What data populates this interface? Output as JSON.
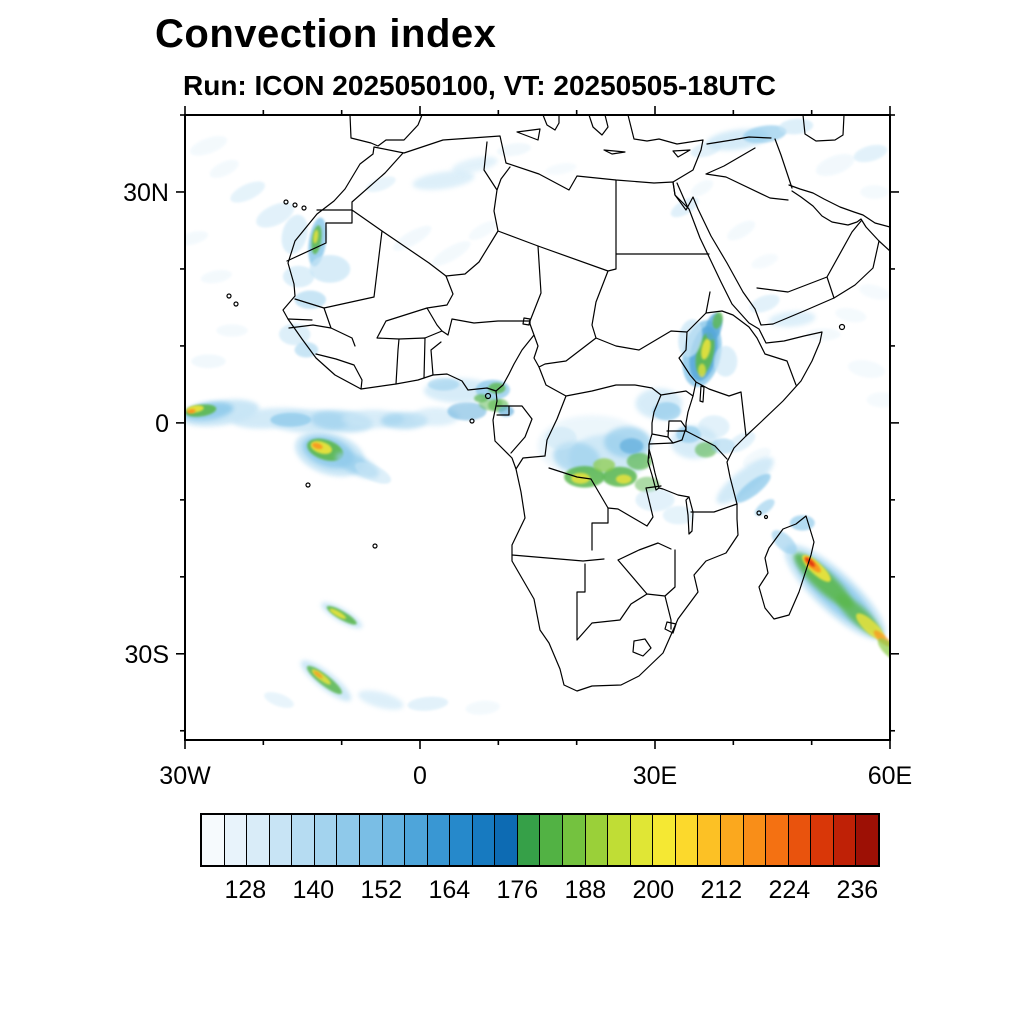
{
  "chart_data": {
    "type": "heatmap",
    "title": "Convection index",
    "subtitle": "Run: ICON 2025050100,  VT: 20250505-18UTC",
    "x_axis": {
      "range_lon": [
        -30,
        60
      ],
      "minor_tick_step_deg": 10,
      "label_ticks": [
        {
          "label": "30W",
          "lon": -30
        },
        {
          "label": "0",
          "lon": 0
        },
        {
          "label": "30E",
          "lon": 30
        },
        {
          "label": "60E",
          "lon": 60
        }
      ]
    },
    "y_axis": {
      "range_lat": [
        -41.2,
        40
      ],
      "minor_tick_step_deg": 10,
      "label_ticks": [
        {
          "label": "30N",
          "lat": 30
        },
        {
          "label": "0",
          "lat": 0
        },
        {
          "label": "30S",
          "lat": -30
        }
      ]
    },
    "colorbar": {
      "min": 120,
      "max": 240,
      "step": 4,
      "tick_labels": [
        "128",
        "140",
        "152",
        "164",
        "176",
        "188",
        "200",
        "212",
        "224",
        "236"
      ],
      "colors": [
        "#f6fafd",
        "#e8f3fb",
        "#d9ecf8",
        "#c8e4f5",
        "#b6dcf2",
        "#a3d3ee",
        "#8fc9ea",
        "#7abee5",
        "#64b2e0",
        "#4ea5da",
        "#3997d3",
        "#2689cb",
        "#177ac0",
        "#0d6bb3",
        "#36a048",
        "#52b244",
        "#74c23f",
        "#9ad039",
        "#c0dd35",
        "#e0e635",
        "#f5e833",
        "#fcd92c",
        "#fcc125",
        "#fba81e",
        "#f98e18",
        "#f47112",
        "#e9530d",
        "#d93708",
        "#bf2106",
        "#9d1005"
      ]
    },
    "palette": {
      "b0": "#e8f4fb",
      "b1": "#c7e5f6",
      "b2": "#93ccec",
      "b3": "#56a8da",
      "b4": "#2480bd",
      "g1": "#5cb84f",
      "g2": "#8ccc44",
      "y": "#f0e53a",
      "o": "#fb921e",
      "r": "#e03010",
      "dr": "#a31309"
    },
    "features_format": [
      "lon",
      "lat",
      "rx_deg",
      "ry_deg",
      "rotation_deg",
      "palette_key",
      "opacity"
    ],
    "features": [
      [
        -25.5,
        1.3,
        5,
        1.6,
        -8,
        "b1",
        0.95
      ],
      [
        -27,
        1.5,
        3.2,
        1.1,
        -8,
        "b2",
        0.95
      ],
      [
        -28,
        1.6,
        2,
        0.75,
        -8,
        "g1",
        0.9
      ],
      [
        -28.7,
        1.8,
        1.1,
        0.45,
        -8,
        "y",
        0.9
      ],
      [
        -29.2,
        1.5,
        0.55,
        0.28,
        -8,
        "o",
        0.9
      ],
      [
        -19,
        0.6,
        5,
        1.3,
        -4,
        "b1",
        0.8
      ],
      [
        -14,
        0.2,
        5,
        1.5,
        0,
        "b1",
        0.85
      ],
      [
        -16.5,
        0.4,
        2.6,
        0.9,
        0,
        "b2",
        0.8
      ],
      [
        -10,
        0.2,
        4,
        1.4,
        5,
        "b2",
        0.6
      ],
      [
        -6,
        0.5,
        4,
        1.2,
        0,
        "b1",
        0.7
      ],
      [
        -2,
        0.3,
        3,
        1.1,
        0,
        "b2",
        0.6
      ],
      [
        2,
        0.8,
        3,
        1.2,
        0,
        "b1",
        0.6
      ],
      [
        6,
        1.5,
        2.5,
        1.2,
        0,
        "b3",
        0.5
      ],
      [
        9,
        2.5,
        1.5,
        0.9,
        0,
        "g1",
        0.5
      ],
      [
        10,
        2.3,
        1.3,
        0.9,
        0,
        "g1",
        0.6
      ],
      [
        11,
        1.5,
        1,
        0.7,
        0,
        "b3",
        0.6
      ],
      [
        -11.5,
        -4,
        4.6,
        2.7,
        18,
        "b1",
        0.95
      ],
      [
        -11.7,
        -3.8,
        3.4,
        1.9,
        18,
        "b2",
        0.95
      ],
      [
        -12.1,
        -3.5,
        2.4,
        1.3,
        18,
        "g1",
        0.9
      ],
      [
        -12.6,
        -3.2,
        1.4,
        0.75,
        18,
        "y",
        0.9
      ],
      [
        -13.1,
        -3,
        0.7,
        0.38,
        18,
        "o",
        0.85
      ],
      [
        -8,
        -5.5,
        3,
        1.2,
        25,
        "b2",
        0.7
      ],
      [
        -6,
        -6.5,
        2.5,
        1,
        25,
        "b1",
        0.6
      ],
      [
        5,
        4.2,
        4.5,
        1.6,
        0,
        "b1",
        0.7
      ],
      [
        9.3,
        4.3,
        2.2,
        1.3,
        0,
        "b2",
        0.8
      ],
      [
        9.8,
        4.5,
        1.1,
        0.7,
        0,
        "g1",
        0.8
      ],
      [
        7.8,
        3.2,
        0.9,
        0.55,
        0,
        "g1",
        0.7
      ],
      [
        3,
        5,
        2,
        0.8,
        0,
        "b2",
        0.5
      ],
      [
        22,
        -3,
        7,
        4,
        0,
        "b0",
        0.8
      ],
      [
        24,
        -4.5,
        5,
        3,
        0,
        "b1",
        0.8
      ],
      [
        26.5,
        -2.5,
        3,
        2,
        0,
        "b2",
        0.7
      ],
      [
        20,
        -4.5,
        3,
        2,
        10,
        "b2",
        0.6
      ],
      [
        21,
        -7,
        2.6,
        1.4,
        0,
        "g1",
        0.85
      ],
      [
        20.5,
        -7.2,
        1.2,
        0.7,
        0,
        "y",
        0.8
      ],
      [
        25.5,
        -7,
        2.2,
        1.3,
        0,
        "g1",
        0.85
      ],
      [
        26,
        -7.3,
        1,
        0.6,
        0,
        "y",
        0.8
      ],
      [
        28,
        -5,
        1.6,
        1.1,
        0,
        "g1",
        0.7
      ],
      [
        23.5,
        -5.5,
        1.4,
        0.9,
        0,
        "g2",
        0.7
      ],
      [
        27,
        -3,
        1.5,
        1,
        0,
        "b3",
        0.6
      ],
      [
        18,
        -2,
        2,
        1.5,
        0,
        "b1",
        0.5
      ],
      [
        29,
        -8,
        1.6,
        1,
        0,
        "g1",
        0.5
      ],
      [
        30,
        -10,
        2.5,
        1.5,
        0,
        "b1",
        0.5
      ],
      [
        33,
        -12,
        2,
        1.2,
        0,
        "b1",
        0.45
      ],
      [
        30.5,
        2.5,
        3,
        2,
        0,
        "b1",
        0.7
      ],
      [
        31.5,
        1.5,
        1.8,
        1.2,
        0,
        "b2",
        0.7
      ],
      [
        36,
        9,
        2.4,
        4.4,
        12,
        "b2",
        0.9
      ],
      [
        36.2,
        9,
        1.7,
        3.6,
        12,
        "b3",
        0.85
      ],
      [
        36.4,
        9,
        1.1,
        2.8,
        12,
        "g1",
        0.9
      ],
      [
        36.5,
        9.6,
        0.55,
        1.4,
        12,
        "y",
        0.85
      ],
      [
        36,
        6.8,
        0.5,
        0.9,
        0,
        "y",
        0.7
      ],
      [
        37.5,
        12.5,
        1,
        1.8,
        15,
        "b3",
        0.8
      ],
      [
        38,
        13.3,
        0.6,
        1.1,
        15,
        "g1",
        0.8
      ],
      [
        34.5,
        11,
        1.5,
        2.5,
        10,
        "b1",
        0.7
      ],
      [
        39,
        8,
        1.5,
        2,
        0,
        "b1",
        0.6
      ],
      [
        35,
        -2.5,
        3,
        2.2,
        0,
        "b1",
        0.7
      ],
      [
        34.3,
        -1.5,
        1.6,
        1.1,
        0,
        "b2",
        0.7
      ],
      [
        36.5,
        -3.5,
        1.4,
        1,
        0,
        "g1",
        0.6
      ],
      [
        37.5,
        -0.5,
        2,
        1.5,
        0,
        "b1",
        0.5
      ],
      [
        38.7,
        -3,
        1.5,
        1,
        0,
        "b2",
        0.5
      ],
      [
        41,
        -2.5,
        2,
        1,
        -30,
        "b1",
        0.5
      ],
      [
        43,
        -4.5,
        2,
        0.9,
        -30,
        "b0",
        0.5
      ],
      [
        41.5,
        -7.5,
        4.5,
        1.4,
        -38,
        "b1",
        0.8
      ],
      [
        42.5,
        -8.5,
        2.8,
        0.9,
        -38,
        "b2",
        0.8
      ],
      [
        44,
        -11,
        1.5,
        0.7,
        -38,
        "b2",
        0.6
      ],
      [
        53,
        -22,
        8.5,
        2.6,
        43,
        "b1",
        0.95
      ],
      [
        53,
        -22,
        6.8,
        1.9,
        43,
        "b2",
        0.95
      ],
      [
        51.5,
        -20.5,
        5,
        1.3,
        43,
        "g1",
        0.9
      ],
      [
        56,
        -25,
        3.8,
        1.1,
        43,
        "g1",
        0.85
      ],
      [
        50.6,
        -18.9,
        2.4,
        0.75,
        43,
        "y",
        0.9
      ],
      [
        50.1,
        -18.4,
        1.4,
        0.5,
        43,
        "o",
        0.9
      ],
      [
        49.8,
        -18.1,
        0.8,
        0.3,
        43,
        "r",
        0.9
      ],
      [
        57.5,
        -26.5,
        2.4,
        0.8,
        43,
        "y",
        0.8
      ],
      [
        59,
        -28,
        1.4,
        0.5,
        43,
        "o",
        0.7
      ],
      [
        60,
        -29.5,
        2,
        0.8,
        43,
        "g2",
        0.7
      ],
      [
        48.8,
        -13,
        1.6,
        1,
        0,
        "b2",
        0.7
      ],
      [
        46.5,
        -15.5,
        2,
        1,
        43,
        "b2",
        0.6
      ],
      [
        -10,
        -25,
        3,
        0.85,
        30,
        "b1",
        0.9
      ],
      [
        -10,
        -25,
        2.2,
        0.55,
        30,
        "g1",
        0.9
      ],
      [
        -10.5,
        -24.8,
        1.2,
        0.32,
        30,
        "y",
        0.85
      ],
      [
        -12,
        -33.5,
        4,
        1.1,
        38,
        "b1",
        0.9
      ],
      [
        -12.2,
        -33.4,
        2.8,
        0.7,
        38,
        "g1",
        0.85
      ],
      [
        -12.6,
        -33,
        1.5,
        0.4,
        38,
        "y",
        0.8
      ],
      [
        -13,
        -32.7,
        0.7,
        0.25,
        38,
        "o",
        0.7
      ],
      [
        -5,
        -36,
        3,
        1,
        15,
        "b1",
        0.6
      ],
      [
        1,
        -36.5,
        2.6,
        0.9,
        -5,
        "b1",
        0.5
      ],
      [
        -18,
        -36,
        2,
        0.8,
        20,
        "b1",
        0.4
      ],
      [
        8,
        -37,
        2.2,
        0.9,
        -5,
        "b0",
        0.5
      ],
      [
        -13.1,
        23.5,
        1.1,
        3.2,
        8,
        "b2",
        0.9
      ],
      [
        -13.2,
        23.8,
        0.6,
        1.9,
        8,
        "g1",
        0.85
      ],
      [
        -13.3,
        24.2,
        0.3,
        0.9,
        8,
        "y",
        0.8
      ],
      [
        -11.5,
        20,
        2.6,
        1.8,
        0,
        "b1",
        0.7
      ],
      [
        -15.5,
        19,
        2,
        1.4,
        0,
        "b1",
        0.6
      ],
      [
        -16,
        24.5,
        1.6,
        2.6,
        15,
        "b1",
        0.6
      ],
      [
        -18.5,
        27,
        2.6,
        1.3,
        -25,
        "b1",
        0.5
      ],
      [
        -22,
        30,
        2.4,
        1,
        -25,
        "b1",
        0.45
      ],
      [
        -25,
        33,
        2,
        0.9,
        -25,
        "b0",
        0.5
      ],
      [
        -27,
        36,
        2.5,
        1,
        -20,
        "b0",
        0.5
      ],
      [
        -14,
        16,
        2,
        1.2,
        0,
        "b2",
        0.5
      ],
      [
        -16,
        11.5,
        2,
        1.4,
        0,
        "b1",
        0.6
      ],
      [
        -14.5,
        9.5,
        1.5,
        1,
        0,
        "b2",
        0.5
      ],
      [
        -27,
        8,
        2.2,
        0.9,
        0,
        "b0",
        0.6
      ],
      [
        -24,
        12,
        2,
        0.8,
        0,
        "b0",
        0.5
      ],
      [
        -26,
        19,
        2,
        0.8,
        -10,
        "b0",
        0.5
      ],
      [
        -29,
        24,
        2,
        0.8,
        -15,
        "b0",
        0.5
      ],
      [
        3,
        31.5,
        4,
        1.1,
        -8,
        "b1",
        0.6
      ],
      [
        7,
        33.5,
        3,
        0.9,
        -12,
        "b1",
        0.5
      ],
      [
        12,
        35.5,
        2.2,
        0.8,
        -8,
        "b0",
        0.6
      ],
      [
        -1,
        24,
        2.8,
        0.9,
        -30,
        "b0",
        0.55
      ],
      [
        4,
        22,
        2.8,
        0.9,
        -30,
        "b0",
        0.5
      ],
      [
        8,
        25,
        2,
        0.8,
        -30,
        "b0",
        0.45
      ],
      [
        -5,
        31,
        2,
        0.8,
        -20,
        "b1",
        0.4
      ],
      [
        18,
        33,
        2,
        0.7,
        -10,
        "b0",
        0.4
      ],
      [
        40.5,
        36.8,
        4,
        1.3,
        -8,
        "b1",
        0.75
      ],
      [
        44,
        37.5,
        2.8,
        1.1,
        -8,
        "b2",
        0.7
      ],
      [
        48,
        38.5,
        2.2,
        1,
        -5,
        "b1",
        0.6
      ],
      [
        36.5,
        35.5,
        2,
        0.9,
        -15,
        "b1",
        0.5
      ],
      [
        33.8,
        28,
        2,
        0.9,
        -30,
        "b1",
        0.55
      ],
      [
        36,
        30.5,
        1.6,
        0.8,
        -30,
        "b0",
        0.5
      ],
      [
        41,
        25,
        2,
        0.9,
        -30,
        "b0",
        0.5
      ],
      [
        44,
        21,
        1.8,
        0.8,
        -20,
        "b0",
        0.4
      ],
      [
        53,
        33.5,
        2.6,
        1.2,
        -20,
        "b0",
        0.55
      ],
      [
        57.5,
        35,
        2.2,
        1,
        -15,
        "b1",
        0.5
      ],
      [
        58,
        30,
        1.8,
        0.9,
        0,
        "b0",
        0.45
      ],
      [
        44,
        15.5,
        2,
        1,
        -20,
        "b1",
        0.5
      ],
      [
        47.5,
        13.5,
        3,
        1,
        -5,
        "b1",
        0.6
      ],
      [
        51.5,
        11.5,
        2.2,
        0.8,
        0,
        "b0",
        0.5
      ],
      [
        55,
        14,
        2,
        0.9,
        10,
        "b0",
        0.45
      ],
      [
        58,
        17,
        2,
        0.9,
        15,
        "b0",
        0.4
      ],
      [
        57,
        7,
        2.4,
        1.1,
        10,
        "b0",
        0.45
      ],
      [
        59,
        3,
        2,
        1,
        0,
        "b0",
        0.4
      ]
    ]
  }
}
